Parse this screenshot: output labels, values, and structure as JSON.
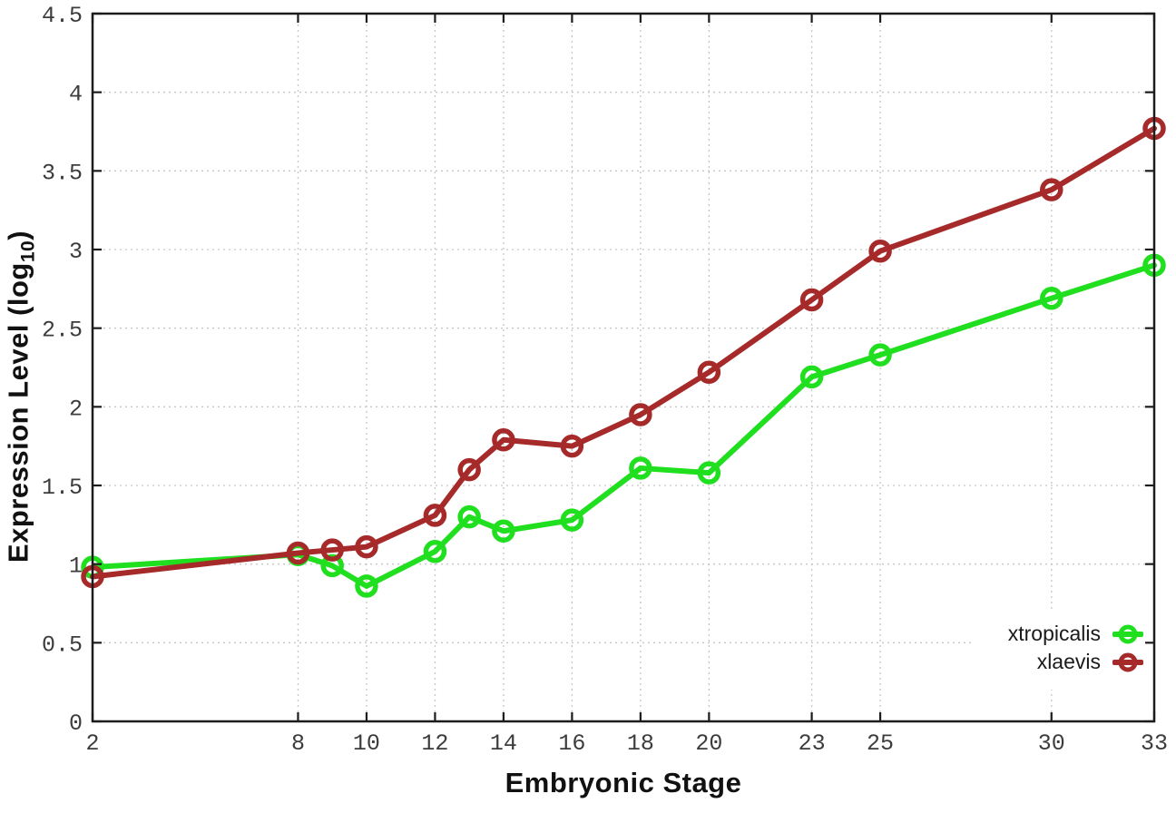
{
  "chart_data": {
    "type": "line",
    "title": "",
    "xlabel": "Embryonic Stage",
    "ylabel": "Expression Level (log10)",
    "ylabel_parts": {
      "main": "Expression Level (log",
      "sub": "10",
      "end": ")"
    },
    "x": [
      2,
      8,
      9,
      10,
      12,
      13,
      14,
      16,
      18,
      20,
      23,
      25,
      30,
      33
    ],
    "series": [
      {
        "name": "xtropicalis",
        "color": "#1fdf1f",
        "marker": "open-circle",
        "values": [
          0.98,
          1.06,
          0.99,
          0.86,
          1.08,
          1.3,
          1.21,
          1.28,
          1.61,
          1.58,
          2.19,
          2.33,
          2.69,
          2.9
        ]
      },
      {
        "name": "xlaevis",
        "color": "#a62a2a",
        "marker": "open-circle",
        "values": [
          0.92,
          1.07,
          1.09,
          1.11,
          1.31,
          1.6,
          1.79,
          1.75,
          1.95,
          2.22,
          2.68,
          2.99,
          3.38,
          3.77
        ]
      }
    ],
    "xlim": [
      2,
      33
    ],
    "ylim": [
      0,
      4.5
    ],
    "xticks": [
      2,
      8,
      10,
      12,
      14,
      16,
      18,
      20,
      23,
      25,
      30,
      33
    ],
    "yticks": [
      0,
      0.5,
      1,
      1.5,
      2,
      2.5,
      3,
      3.5,
      4,
      4.5
    ],
    "grid": true,
    "grid_style": "dotted",
    "legend_position": "inside-bottom-right",
    "colors": {
      "background": "#ffffff",
      "grid": "#c6c6c6",
      "axis": "#1c1c1c",
      "tick_text": "#3c3c3c",
      "legend_text": "#1a1a1a"
    }
  }
}
